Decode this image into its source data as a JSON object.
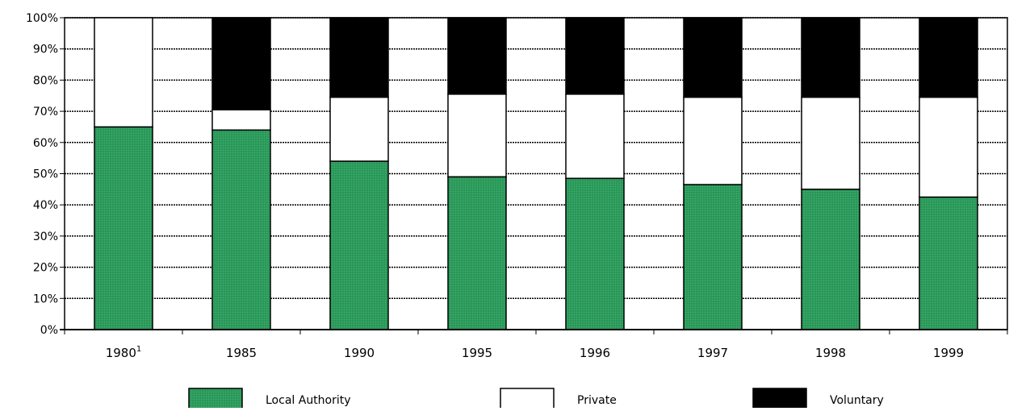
{
  "chart_data": {
    "type": "bar",
    "stacked": true,
    "percent_stacked": true,
    "title": "",
    "xlabel": "",
    "ylabel": "",
    "ylim": [
      0,
      100
    ],
    "y_ticks": [
      "0%",
      "10%",
      "20%",
      "30%",
      "40%",
      "50%",
      "60%",
      "70%",
      "80%",
      "90%",
      "100%"
    ],
    "categories": [
      "1980",
      "1985",
      "1990",
      "1995",
      "1996",
      "1997",
      "1998",
      "1999"
    ],
    "category_superscripts": [
      "1",
      "",
      "",
      "",
      "",
      "",
      "",
      ""
    ],
    "grid": true,
    "legend_position": "bottom",
    "series": [
      {
        "name": "Local Authority",
        "color": "#2e9e5e",
        "values": [
          65,
          64,
          54,
          49,
          48.5,
          46.5,
          45,
          42.5
        ]
      },
      {
        "name": "Private",
        "color": "#ffffff",
        "values": [
          35,
          6.5,
          20.5,
          26.5,
          27,
          28,
          29.5,
          32
        ]
      },
      {
        "name": "Voluntary",
        "color": "#000000",
        "values": [
          0,
          29.5,
          25.5,
          24.5,
          24.5,
          25.5,
          25.5,
          25.5
        ]
      }
    ]
  }
}
